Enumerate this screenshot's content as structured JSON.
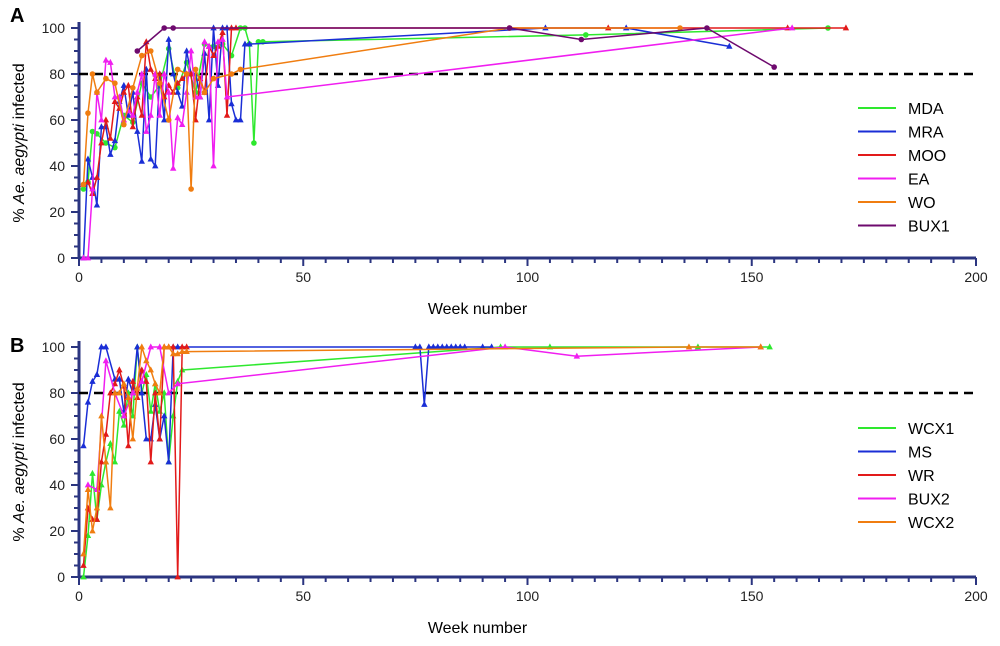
{
  "chart_data": [
    {
      "type": "line",
      "panel": "A",
      "xlabel": "Week number",
      "ylabel_prefix": "% ",
      "ylabel_italic": "Ae. aegypti",
      "ylabel_suffix": " infected",
      "xlim": [
        0,
        200
      ],
      "ylim": [
        0,
        100
      ],
      "xticks": [
        0,
        50,
        100,
        150,
        200
      ],
      "yticks": [
        0,
        20,
        40,
        60,
        80,
        100
      ],
      "threshold": 80,
      "legend_position": "right",
      "series": [
        {
          "name": "MDA",
          "color": "#2ee82e",
          "marker": "circle",
          "x": [
            1,
            2,
            3,
            4,
            6,
            8,
            10,
            12,
            14,
            16,
            18,
            20,
            22,
            24,
            26,
            28,
            30,
            32,
            34,
            36,
            37,
            38,
            39,
            40,
            41,
            113,
            167
          ],
          "y": [
            30,
            33,
            55,
            54,
            50,
            48,
            62,
            59,
            76,
            70,
            75,
            91,
            74,
            85,
            72,
            93,
            92,
            93,
            88,
            100,
            100,
            93,
            50,
            94,
            94,
            97,
            100
          ]
        },
        {
          "name": "MRA",
          "color": "#1a2ed6",
          "marker": "triangle",
          "x": [
            1,
            2,
            3,
            4,
            5,
            6,
            7,
            8,
            9,
            10,
            11,
            12,
            13,
            14,
            15,
            16,
            17,
            18,
            19,
            20,
            21,
            22,
            23,
            24,
            25,
            26,
            27,
            28,
            29,
            30,
            31,
            32,
            33,
            34,
            35,
            36,
            37,
            38,
            104,
            122,
            145
          ],
          "y": [
            0,
            43,
            35,
            23,
            57,
            57,
            45,
            51,
            68,
            75,
            62,
            72,
            55,
            42,
            82,
            43,
            40,
            80,
            60,
            95,
            80,
            72,
            66,
            90,
            80,
            80,
            70,
            89,
            60,
            100,
            75,
            100,
            100,
            67,
            60,
            60,
            93,
            93,
            100,
            100,
            92
          ]
        },
        {
          "name": "MOO",
          "color": "#e21a1a",
          "marker": "triangle",
          "x": [
            1,
            2,
            3,
            4,
            5,
            6,
            7,
            8,
            9,
            10,
            11,
            12,
            13,
            14,
            15,
            16,
            17,
            18,
            19,
            20,
            21,
            22,
            23,
            24,
            25,
            26,
            27,
            28,
            29,
            30,
            31,
            32,
            33,
            34,
            35,
            118,
            158,
            171
          ],
          "y": [
            32,
            33,
            28,
            35,
            50,
            60,
            52,
            68,
            65,
            72,
            75,
            57,
            70,
            62,
            94,
            82,
            78,
            80,
            70,
            75,
            72,
            76,
            78,
            80,
            80,
            60,
            78,
            72,
            92,
            88,
            92,
            98,
            62,
            100,
            100,
            100,
            100,
            100
          ]
        },
        {
          "name": "EA",
          "color": "#f01ef0",
          "marker": "triangle",
          "x": [
            1,
            2,
            3,
            4,
            5,
            6,
            7,
            8,
            9,
            10,
            11,
            12,
            13,
            14,
            15,
            16,
            17,
            18,
            19,
            20,
            21,
            22,
            23,
            24,
            25,
            26,
            27,
            28,
            29,
            30,
            31,
            32,
            33,
            159
          ],
          "y": [
            0,
            0,
            30,
            72,
            60,
            86,
            85,
            70,
            70,
            60,
            64,
            62,
            72,
            80,
            55,
            62,
            80,
            62,
            80,
            72,
            39,
            61,
            58,
            72,
            90,
            70,
            70,
            94,
            92,
            40,
            94,
            95,
            70,
            100
          ]
        },
        {
          "name": "WO",
          "color": "#f07d10",
          "marker": "circle",
          "x": [
            1,
            2,
            3,
            4,
            6,
            8,
            10,
            12,
            14,
            16,
            18,
            20,
            22,
            24,
            25,
            26,
            28,
            30,
            34,
            36,
            96,
            134
          ],
          "y": [
            32,
            63,
            80,
            72,
            78,
            76,
            58,
            74,
            88,
            90,
            76,
            60,
            82,
            80,
            30,
            82,
            72,
            78,
            80,
            82,
            100,
            100
          ]
        },
        {
          "name": "BUX1",
          "color": "#6e0a6e",
          "marker": "circle",
          "x": [
            13,
            19,
            21,
            96,
            112,
            140,
            155
          ],
          "y": [
            90,
            100,
            100,
            100,
            95,
            100,
            83
          ]
        }
      ]
    },
    {
      "type": "line",
      "panel": "B",
      "xlabel": "Week number",
      "ylabel_prefix": "% ",
      "ylabel_italic": "Ae. aegypti",
      "ylabel_suffix": " infected",
      "xlim": [
        0,
        200
      ],
      "ylim": [
        0,
        100
      ],
      "xticks": [
        0,
        50,
        100,
        150,
        200
      ],
      "yticks": [
        0,
        20,
        40,
        60,
        80,
        100
      ],
      "threshold": 80,
      "legend_position": "right",
      "series": [
        {
          "name": "WCX1",
          "color": "#2ee82e",
          "marker": "triangle",
          "x": [
            1,
            2,
            3,
            4,
            5,
            6,
            7,
            8,
            9,
            10,
            11,
            12,
            13,
            14,
            15,
            16,
            17,
            18,
            19,
            20,
            21,
            22,
            23,
            94,
            105,
            138,
            154
          ],
          "y": [
            0,
            18,
            45,
            25,
            40,
            50,
            58,
            50,
            72,
            66,
            80,
            70,
            100,
            80,
            88,
            72,
            84,
            72,
            80,
            50,
            70,
            85,
            90,
            100,
            100,
            100,
            100
          ]
        },
        {
          "name": "MS",
          "color": "#1a2ed6",
          "marker": "triangle",
          "x": [
            1,
            2,
            3,
            4,
            5,
            6,
            8,
            9,
            10,
            11,
            12,
            13,
            14,
            15,
            16,
            17,
            18,
            19,
            20,
            21,
            22,
            75,
            76,
            77,
            78,
            79,
            80,
            81,
            82,
            83,
            84,
            85,
            86,
            90,
            92
          ],
          "y": [
            57,
            76,
            85,
            88,
            100,
            100,
            86,
            86,
            72,
            86,
            80,
            100,
            80,
            60,
            60,
            75,
            60,
            70,
            50,
            100,
            100,
            100,
            100,
            75,
            100,
            100,
            100,
            100,
            100,
            100,
            100,
            100,
            100,
            100,
            100
          ]
        },
        {
          "name": "WR",
          "color": "#e21a1a",
          "marker": "triangle",
          "x": [
            1,
            2,
            3,
            4,
            5,
            6,
            7,
            8,
            9,
            10,
            11,
            12,
            13,
            14,
            15,
            16,
            17,
            18,
            19,
            20,
            21,
            22,
            23,
            24
          ],
          "y": [
            5,
            30,
            25,
            25,
            50,
            62,
            80,
            84,
            90,
            83,
            57,
            85,
            78,
            90,
            85,
            50,
            80,
            60,
            100,
            100,
            100,
            0,
            100,
            100
          ]
        },
        {
          "name": "BUX2",
          "color": "#f01ef0",
          "marker": "triangle",
          "x": [
            2,
            4,
            6,
            8,
            10,
            12,
            14,
            16,
            18,
            20,
            22,
            95,
            111,
            152
          ],
          "y": [
            40,
            38,
            94,
            80,
            70,
            80,
            85,
            100,
            100,
            80,
            84,
            100,
            96,
            100
          ]
        },
        {
          "name": "WCX2",
          "color": "#f07d10",
          "marker": "triangle",
          "x": [
            1,
            2,
            3,
            4,
            5,
            6,
            7,
            8,
            9,
            10,
            11,
            12,
            13,
            14,
            15,
            16,
            17,
            18,
            19,
            20,
            21,
            22,
            23,
            24,
            136,
            152
          ],
          "y": [
            10,
            38,
            20,
            30,
            70,
            50,
            30,
            80,
            80,
            84,
            78,
            60,
            82,
            100,
            94,
            90,
            84,
            80,
            100,
            100,
            97,
            97,
            98,
            98,
            100,
            100
          ]
        }
      ]
    }
  ]
}
